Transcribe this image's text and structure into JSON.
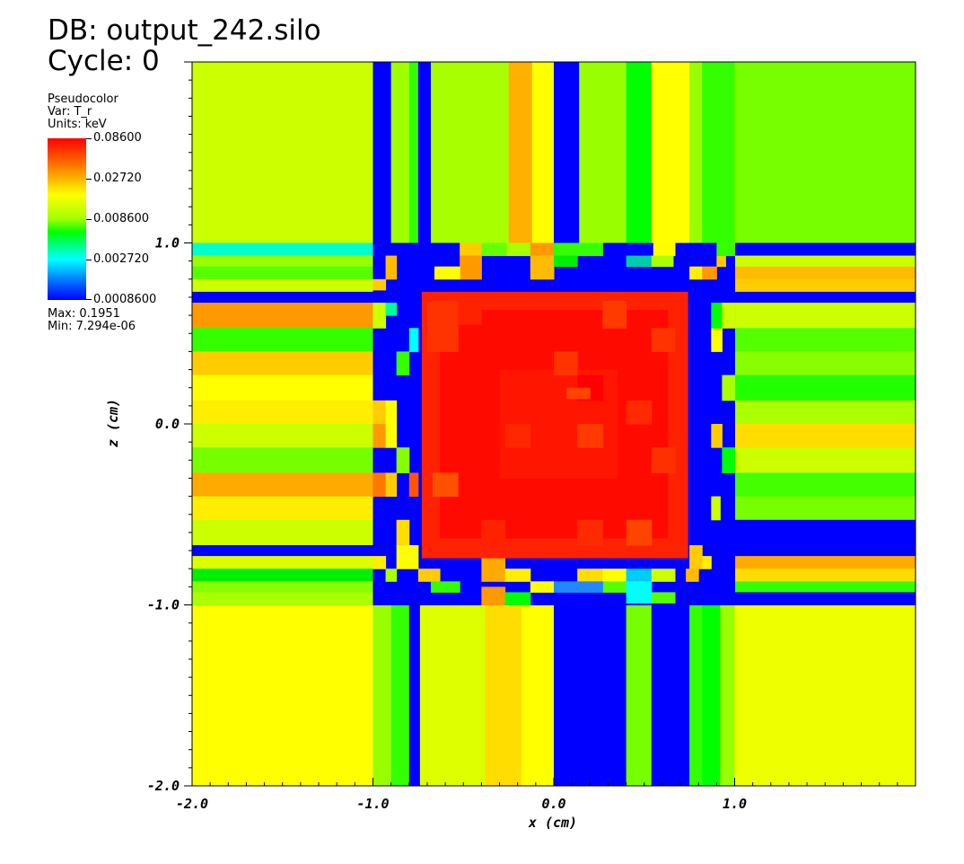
{
  "header": {
    "db_line": "DB: output_242.silo",
    "cycle_line": "Cycle: 0"
  },
  "legend": {
    "plot_type": "Pseudocolor",
    "var_line": "Var: T_r",
    "units_line": "Units: keV",
    "max_line": "Max:  0.1951",
    "min_line": "Min:  7.294e-06",
    "colorbar_labels": [
      "0.08600",
      "0.02720",
      "0.008600",
      "0.002720",
      "0.0008600"
    ]
  },
  "chart_data": {
    "type": "heatmap",
    "xlabel": "x (cm)",
    "ylabel": "z (cm)",
    "xlim": [
      -2.0,
      2.0
    ],
    "ylim": [
      -2.0,
      2.0
    ],
    "x_tick_labels": [
      "-2.0",
      "-1.0",
      "0.0",
      "1.0"
    ],
    "x_ticks": [
      -2.0,
      -1.0,
      0.0,
      1.0
    ],
    "y_tick_labels": [
      "-2.0",
      "-1.0",
      "0.0",
      "1.0"
    ],
    "y_ticks": [
      -2.0,
      -1.0,
      0.0,
      1.0
    ],
    "colormap": [
      "#0000ff",
      "#00ffff",
      "#00ff00",
      "#ffff00",
      "#ff0000"
    ],
    "cells": [
      {
        "x0": -2.0,
        "x1": -1.0,
        "y0": 1.0,
        "y1": 2.0,
        "color": "#ccff00"
      },
      {
        "x0": -1.0,
        "x1": -0.9,
        "y0": 1.0,
        "y1": 2.0,
        "color": "#0000ff"
      },
      {
        "x0": -0.9,
        "x1": -0.8,
        "y0": 1.0,
        "y1": 2.0,
        "color": "#a0ff00"
      },
      {
        "x0": -0.8,
        "x1": -0.75,
        "y0": 1.0,
        "y1": 2.0,
        "color": "#33ff00"
      },
      {
        "x0": -0.75,
        "x1": -0.68,
        "y0": 1.0,
        "y1": 2.0,
        "color": "#0000ff"
      },
      {
        "x0": -0.68,
        "x1": -0.25,
        "y0": 1.0,
        "y1": 2.0,
        "color": "#a8ff00"
      },
      {
        "x0": -0.25,
        "x1": -0.12,
        "y0": 1.0,
        "y1": 2.0,
        "color": "#ffb000"
      },
      {
        "x0": -0.12,
        "x1": 0.0,
        "y0": 1.0,
        "y1": 2.0,
        "color": "#ffff00"
      },
      {
        "x0": 0.0,
        "x1": 0.14,
        "y0": 1.0,
        "y1": 2.0,
        "color": "#0000ff"
      },
      {
        "x0": 0.14,
        "x1": 0.4,
        "y0": 1.0,
        "y1": 2.0,
        "color": "#99ff00"
      },
      {
        "x0": 0.4,
        "x1": 0.54,
        "y0": 1.0,
        "y1": 2.0,
        "color": "#00ff00"
      },
      {
        "x0": 0.54,
        "x1": 0.75,
        "y0": 1.0,
        "y1": 2.0,
        "color": "#ffff00"
      },
      {
        "x0": 0.75,
        "x1": 0.82,
        "y0": 1.0,
        "y1": 2.0,
        "color": "#99ff00"
      },
      {
        "x0": 0.82,
        "x1": 1.0,
        "y0": 1.0,
        "y1": 2.0,
        "color": "#33ff00"
      },
      {
        "x0": 1.0,
        "x1": 2.0,
        "y0": 1.0,
        "y1": 2.0,
        "color": "#77ff00"
      },
      {
        "x0": -2.0,
        "x1": -1.0,
        "y0": -2.0,
        "y1": -1.0,
        "color": "#ffff00"
      },
      {
        "x0": -1.0,
        "x1": -0.9,
        "y0": -2.0,
        "y1": -1.0,
        "color": "#99ff00"
      },
      {
        "x0": -0.9,
        "x1": -0.8,
        "y0": -2.0,
        "y1": -1.0,
        "color": "#33ff00"
      },
      {
        "x0": -0.8,
        "x1": -0.74,
        "y0": -2.0,
        "y1": -1.0,
        "color": "#0000ff"
      },
      {
        "x0": -0.74,
        "x1": -0.38,
        "y0": -2.0,
        "y1": -1.0,
        "color": "#ddff00"
      },
      {
        "x0": -0.38,
        "x1": -0.18,
        "y0": -2.0,
        "y1": -1.0,
        "color": "#ffdd00"
      },
      {
        "x0": -0.18,
        "x1": 0.0,
        "y0": -2.0,
        "y1": -1.0,
        "color": "#ffff00"
      },
      {
        "x0": 0.0,
        "x1": 0.4,
        "y0": -2.0,
        "y1": -1.0,
        "color": "#0000ff"
      },
      {
        "x0": 0.4,
        "x1": 0.54,
        "y0": -2.0,
        "y1": -1.0,
        "color": "#77ff00"
      },
      {
        "x0": 0.54,
        "x1": 0.75,
        "y0": -2.0,
        "y1": -1.0,
        "color": "#0000ff"
      },
      {
        "x0": 0.75,
        "x1": 0.82,
        "y0": -2.0,
        "y1": -1.0,
        "color": "#33ff00"
      },
      {
        "x0": 0.82,
        "x1": 0.92,
        "y0": -2.0,
        "y1": -1.0,
        "color": "#00ff00"
      },
      {
        "x0": 0.92,
        "x1": 1.0,
        "y0": -2.0,
        "y1": -1.0,
        "color": "#99ff00"
      },
      {
        "x0": 1.0,
        "x1": 2.0,
        "y0": -2.0,
        "y1": -1.0,
        "color": "#eeff00"
      },
      {
        "x0": -2.0,
        "x1": -1.0,
        "y0": 0.93,
        "y1": 1.0,
        "color": "#00ffcc"
      },
      {
        "x0": -2.0,
        "x1": -1.0,
        "y0": 0.87,
        "y1": 0.93,
        "color": "#99ff00"
      },
      {
        "x0": -2.0,
        "x1": -1.0,
        "y0": 0.8,
        "y1": 0.87,
        "color": "#55ff00"
      },
      {
        "x0": -2.0,
        "x1": -1.0,
        "y0": 0.73,
        "y1": 0.8,
        "color": "#ccff00"
      },
      {
        "x0": -2.0,
        "x1": -1.0,
        "y0": 0.67,
        "y1": 0.73,
        "color": "#0000ff"
      },
      {
        "x0": -2.0,
        "x1": -1.0,
        "y0": 0.53,
        "y1": 0.67,
        "color": "#ff9900"
      },
      {
        "x0": -2.0,
        "x1": -1.0,
        "y0": 0.4,
        "y1": 0.53,
        "color": "#33ff00"
      },
      {
        "x0": -2.0,
        "x1": -1.0,
        "y0": 0.27,
        "y1": 0.4,
        "color": "#ffcc00"
      },
      {
        "x0": -2.0,
        "x1": -1.0,
        "y0": 0.13,
        "y1": 0.27,
        "color": "#ffff00"
      },
      {
        "x0": -2.0,
        "x1": -1.0,
        "y0": 0.0,
        "y1": 0.13,
        "color": "#ffee00"
      },
      {
        "x0": -2.0,
        "x1": -1.0,
        "y0": -0.13,
        "y1": 0.0,
        "color": "#ccff00"
      },
      {
        "x0": -2.0,
        "x1": -1.0,
        "y0": -0.27,
        "y1": -0.13,
        "color": "#77ff00"
      },
      {
        "x0": -2.0,
        "x1": -1.0,
        "y0": -0.4,
        "y1": -0.27,
        "color": "#ffaa00"
      },
      {
        "x0": -2.0,
        "x1": -1.0,
        "y0": -0.53,
        "y1": -0.4,
        "color": "#ffee00"
      },
      {
        "x0": -2.0,
        "x1": -1.0,
        "y0": -0.67,
        "y1": -0.53,
        "color": "#ccff00"
      },
      {
        "x0": -2.0,
        "x1": -1.0,
        "y0": -0.73,
        "y1": -0.67,
        "color": "#0000ff"
      },
      {
        "x0": -2.0,
        "x1": -1.0,
        "y0": -0.8,
        "y1": -0.73,
        "color": "#ddff00"
      },
      {
        "x0": -2.0,
        "x1": -1.0,
        "y0": -0.87,
        "y1": -0.8,
        "color": "#00ee00"
      },
      {
        "x0": -2.0,
        "x1": -1.0,
        "y0": -0.93,
        "y1": -0.87,
        "color": "#88ff00"
      },
      {
        "x0": -2.0,
        "x1": -1.0,
        "y0": -1.0,
        "y1": -0.93,
        "color": "#aaff00"
      },
      {
        "x0": 1.0,
        "x1": 2.0,
        "y0": 0.93,
        "y1": 1.0,
        "color": "#0000ff"
      },
      {
        "x0": 1.0,
        "x1": 2.0,
        "y0": 0.87,
        "y1": 0.93,
        "color": "#ccff00"
      },
      {
        "x0": 1.0,
        "x1": 2.0,
        "y0": 0.8,
        "y1": 0.87,
        "color": "#ffbb00"
      },
      {
        "x0": 1.0,
        "x1": 2.0,
        "y0": 0.73,
        "y1": 0.8,
        "color": "#ffcc00"
      },
      {
        "x0": 1.0,
        "x1": 2.0,
        "y0": 0.67,
        "y1": 0.73,
        "color": "#0000ff"
      },
      {
        "x0": 1.0,
        "x1": 2.0,
        "y0": 0.53,
        "y1": 0.67,
        "color": "#ccff00"
      },
      {
        "x0": 1.0,
        "x1": 2.0,
        "y0": 0.4,
        "y1": 0.53,
        "color": "#55ff00"
      },
      {
        "x0": 1.0,
        "x1": 2.0,
        "y0": 0.27,
        "y1": 0.4,
        "color": "#88ff00"
      },
      {
        "x0": 1.0,
        "x1": 2.0,
        "y0": 0.13,
        "y1": 0.27,
        "color": "#22ff00"
      },
      {
        "x0": 1.0,
        "x1": 2.0,
        "y0": 0.0,
        "y1": 0.13,
        "color": "#aaff00"
      },
      {
        "x0": 1.0,
        "x1": 2.0,
        "y0": -0.13,
        "y1": 0.0,
        "color": "#ffdd00"
      },
      {
        "x0": 1.0,
        "x1": 2.0,
        "y0": -0.27,
        "y1": -0.13,
        "color": "#ccff00"
      },
      {
        "x0": 1.0,
        "x1": 2.0,
        "y0": -0.4,
        "y1": -0.27,
        "color": "#44ff00"
      },
      {
        "x0": 1.0,
        "x1": 2.0,
        "y0": -0.53,
        "y1": -0.4,
        "color": "#77ff00"
      },
      {
        "x0": 1.0,
        "x1": 2.0,
        "y0": -0.67,
        "y1": -0.53,
        "color": "#0000ff"
      },
      {
        "x0": 1.0,
        "x1": 2.0,
        "y0": -0.73,
        "y1": -0.67,
        "color": "#0000ff"
      },
      {
        "x0": 1.0,
        "x1": 2.0,
        "y0": -0.8,
        "y1": -0.73,
        "color": "#ffaa00"
      },
      {
        "x0": 1.0,
        "x1": 2.0,
        "y0": -0.87,
        "y1": -0.8,
        "color": "#ffdd00"
      },
      {
        "x0": 1.0,
        "x1": 2.0,
        "y0": -0.93,
        "y1": -0.87,
        "color": "#33ff00"
      },
      {
        "x0": 1.0,
        "x1": 2.0,
        "y0": -1.0,
        "y1": -0.93,
        "color": "#0000ff"
      },
      {
        "x0": -1.0,
        "x1": 1.0,
        "y0": -1.0,
        "y1": 1.0,
        "color": "#0000ff"
      },
      {
        "x0": -0.72,
        "x1": 0.75,
        "y0": 0.78,
        "y1": 1.0,
        "color": "#0000ff"
      },
      {
        "x0": -0.52,
        "x1": -0.4,
        "y0": 0.93,
        "y1": 1.0,
        "color": "#ffcc00"
      },
      {
        "x0": -0.4,
        "x1": -0.26,
        "y0": 0.93,
        "y1": 1.0,
        "color": "#66ff00"
      },
      {
        "x0": -0.26,
        "x1": -0.13,
        "y0": 0.93,
        "y1": 1.0,
        "color": "#aaff00"
      },
      {
        "x0": -0.13,
        "x1": 0.0,
        "y0": 0.93,
        "y1": 1.0,
        "color": "#ff9900"
      },
      {
        "x0": 0.0,
        "x1": 0.27,
        "y0": 0.93,
        "y1": 1.0,
        "color": "#33ff00"
      },
      {
        "x0": 0.55,
        "x1": 0.67,
        "y0": 0.93,
        "y1": 1.0,
        "color": "#ffff00"
      },
      {
        "x0": -0.52,
        "x1": -0.4,
        "y0": 0.8,
        "y1": 0.93,
        "color": "#ff9900"
      },
      {
        "x0": -0.66,
        "x1": -0.52,
        "y0": 0.8,
        "y1": 0.87,
        "color": "#ffff00"
      },
      {
        "x0": -0.13,
        "x1": 0.0,
        "y0": 0.8,
        "y1": 0.93,
        "color": "#ffbb00"
      },
      {
        "x0": 0.0,
        "x1": 0.13,
        "y0": 0.87,
        "y1": 0.93,
        "color": "#00ee00"
      },
      {
        "x0": 0.4,
        "x1": 0.54,
        "y0": 0.87,
        "y1": 0.93,
        "color": "#00ccaa"
      },
      {
        "x0": 0.54,
        "x1": 0.66,
        "y0": 0.87,
        "y1": 0.93,
        "color": "#aaff00"
      },
      {
        "x0": -0.93,
        "x1": -0.87,
        "y0": 0.8,
        "y1": 0.93,
        "color": "#ffbb00"
      },
      {
        "x0": -1.0,
        "x1": -0.93,
        "y0": 0.74,
        "y1": 0.8,
        "color": "#ffcc00"
      },
      {
        "x0": -1.0,
        "x1": -0.93,
        "y0": 0.53,
        "y1": 0.67,
        "color": "#ccff00"
      },
      {
        "x0": -0.93,
        "x1": -0.87,
        "y0": 0.6,
        "y1": 0.67,
        "color": "#00ff99"
      },
      {
        "x0": -0.8,
        "x1": -0.75,
        "y0": 0.4,
        "y1": 0.53,
        "color": "#00ffff"
      },
      {
        "x0": -0.87,
        "x1": -0.8,
        "y0": 0.27,
        "y1": 0.4,
        "color": "#33ff00"
      },
      {
        "x0": -1.0,
        "x1": -0.93,
        "y0": 0.0,
        "y1": 0.13,
        "color": "#ffcc00"
      },
      {
        "x0": -1.0,
        "x1": -0.93,
        "y0": -0.13,
        "y1": 0.0,
        "color": "#ff9900"
      },
      {
        "x0": -0.93,
        "x1": -0.87,
        "y0": -0.13,
        "y1": 0.13,
        "color": "#ffff00"
      },
      {
        "x0": -0.87,
        "x1": -0.8,
        "y0": -0.27,
        "y1": -0.13,
        "color": "#88ff00"
      },
      {
        "x0": -1.0,
        "x1": -0.93,
        "y0": -0.4,
        "y1": -0.27,
        "color": "#ff7700"
      },
      {
        "x0": -0.93,
        "x1": -0.87,
        "y0": -0.4,
        "y1": -0.27,
        "color": "#ffcc00"
      },
      {
        "x0": -0.8,
        "x1": -0.75,
        "y0": -0.4,
        "y1": -0.27,
        "color": "#ff5500"
      },
      {
        "x0": -0.87,
        "x1": -0.8,
        "y0": -0.67,
        "y1": -0.53,
        "color": "#ffdd00"
      },
      {
        "x0": -0.87,
        "x1": -0.75,
        "y0": -0.8,
        "y1": -0.67,
        "color": "#ffff00"
      },
      {
        "x0": -1.0,
        "x1": -0.93,
        "y0": -0.8,
        "y1": -0.73,
        "color": "#ffee00"
      },
      {
        "x0": -0.93,
        "x1": -0.87,
        "y0": -0.87,
        "y1": -0.8,
        "color": "#aaff00"
      },
      {
        "x0": -0.75,
        "x1": -0.63,
        "y0": -0.87,
        "y1": -0.8,
        "color": "#ffcc00"
      },
      {
        "x0": -0.68,
        "x1": -0.52,
        "y0": -0.93,
        "y1": -0.87,
        "color": "#33ff00"
      },
      {
        "x0": -0.4,
        "x1": -0.27,
        "y0": -0.87,
        "y1": -0.73,
        "color": "#ffaa00"
      },
      {
        "x0": -0.27,
        "x1": -0.13,
        "y0": -0.87,
        "y1": -0.8,
        "color": "#ffee00"
      },
      {
        "x0": -0.4,
        "x1": -0.27,
        "y0": -1.0,
        "y1": -0.9,
        "color": "#ff9900"
      },
      {
        "x0": -0.27,
        "x1": -0.13,
        "y0": -1.0,
        "y1": -0.93,
        "color": "#00ff00"
      },
      {
        "x0": -0.13,
        "x1": 0.0,
        "y0": -0.93,
        "y1": -0.87,
        "color": "#ffff00"
      },
      {
        "x0": 0.13,
        "x1": 0.27,
        "y0": -0.87,
        "y1": -0.8,
        "color": "#ffdd00"
      },
      {
        "x0": 0.27,
        "x1": 0.4,
        "y0": -0.87,
        "y1": -0.8,
        "color": "#ffff00"
      },
      {
        "x0": 0.27,
        "x1": 0.4,
        "y0": -0.93,
        "y1": -0.87,
        "color": "#55ff00"
      },
      {
        "x0": 0.4,
        "x1": 0.54,
        "y0": -0.87,
        "y1": -0.8,
        "color": "#00ccff"
      },
      {
        "x0": 0.4,
        "x1": 0.54,
        "y0": -0.99,
        "y1": -0.87,
        "color": "#00ffff"
      },
      {
        "x0": 0.54,
        "x1": 0.67,
        "y0": -0.87,
        "y1": -0.8,
        "color": "#ccff00"
      },
      {
        "x0": 0.54,
        "x1": 0.67,
        "y0": -0.99,
        "y1": -0.93,
        "color": "#55ff00"
      },
      {
        "x0": 0.0,
        "x1": 0.27,
        "y0": -0.93,
        "y1": -0.87,
        "color": "#2288ff"
      },
      {
        "x0": 0.75,
        "x1": 0.82,
        "y0": -0.8,
        "y1": -0.67,
        "color": "#ffcc00"
      },
      {
        "x0": 0.82,
        "x1": 0.87,
        "y0": -0.8,
        "y1": -0.73,
        "color": "#ffee00"
      },
      {
        "x0": 0.73,
        "x1": 0.8,
        "y0": -0.87,
        "y1": -0.8,
        "color": "#ffbb00"
      },
      {
        "x0": 0.87,
        "x1": 0.92,
        "y0": -0.53,
        "y1": -0.4,
        "color": "#ccff00"
      },
      {
        "x0": 0.87,
        "x1": 0.93,
        "y0": -0.13,
        "y1": 0.0,
        "color": "#ffcc00"
      },
      {
        "x0": 0.93,
        "x1": 1.0,
        "y0": -0.27,
        "y1": -0.13,
        "color": "#00ff00"
      },
      {
        "x0": 0.93,
        "x1": 1.0,
        "y0": 0.13,
        "y1": 0.27,
        "color": "#aaff00"
      },
      {
        "x0": 0.87,
        "x1": 0.93,
        "y0": 0.4,
        "y1": 0.53,
        "color": "#ffff00"
      },
      {
        "x0": 0.87,
        "x1": 0.93,
        "y0": 0.53,
        "y1": 0.67,
        "color": "#00ff00"
      },
      {
        "x0": 0.93,
        "x1": 1.0,
        "y0": 0.53,
        "y1": 0.67,
        "color": "#ccff00"
      },
      {
        "x0": 0.75,
        "x1": 0.82,
        "y0": 0.8,
        "y1": 0.87,
        "color": "#ffee00"
      },
      {
        "x0": 0.82,
        "x1": 0.9,
        "y0": 0.8,
        "y1": 0.87,
        "color": "#ff9900"
      },
      {
        "x0": 0.9,
        "x1": 0.95,
        "y0": 0.87,
        "y1": 0.93,
        "color": "#ffcc00"
      },
      {
        "x0": 0.9,
        "x1": 1.0,
        "y0": 0.93,
        "y1": 1.0,
        "color": "#33ff00"
      },
      {
        "x0": -0.73,
        "x1": 0.74,
        "y0": -0.74,
        "y1": 0.73,
        "color": "#ff2200"
      },
      {
        "x0": -0.63,
        "x1": 0.63,
        "y0": -0.63,
        "y1": 0.63,
        "color": "#ff0a00"
      },
      {
        "x0": -0.3,
        "x1": 0.35,
        "y0": -0.3,
        "y1": 0.3,
        "color": "#ff1500"
      },
      {
        "x0": -0.7,
        "x1": -0.53,
        "y0": 0.4,
        "y1": 0.68,
        "color": "#ff3300"
      },
      {
        "x0": -0.53,
        "x1": -0.4,
        "y0": 0.55,
        "y1": 0.68,
        "color": "#ff2200"
      },
      {
        "x0": 0.27,
        "x1": 0.4,
        "y0": 0.53,
        "y1": 0.68,
        "color": "#ff3a00"
      },
      {
        "x0": 0.54,
        "x1": 0.67,
        "y0": 0.4,
        "y1": 0.53,
        "color": "#ff3300"
      },
      {
        "x0": 0.0,
        "x1": 0.13,
        "y0": 0.27,
        "y1": 0.4,
        "color": "#ff3300"
      },
      {
        "x0": 0.13,
        "x1": 0.27,
        "y0": 0.13,
        "y1": 0.27,
        "color": "#ff0000"
      },
      {
        "x0": 0.07,
        "x1": 0.2,
        "y0": 0.14,
        "y1": 0.2,
        "color": "#ff4400"
      },
      {
        "x0": -0.67,
        "x1": -0.53,
        "y0": -0.4,
        "y1": -0.27,
        "color": "#ff5000"
      },
      {
        "x0": -0.27,
        "x1": -0.13,
        "y0": -0.13,
        "y1": 0.0,
        "color": "#ff2600"
      },
      {
        "x0": 0.13,
        "x1": 0.27,
        "y0": -0.13,
        "y1": 0.0,
        "color": "#ff3a00"
      },
      {
        "x0": 0.4,
        "x1": 0.54,
        "y0": 0.0,
        "y1": 0.13,
        "color": "#ff2a00"
      },
      {
        "x0": 0.54,
        "x1": 0.67,
        "y0": -0.27,
        "y1": -0.13,
        "color": "#ff3000"
      },
      {
        "x0": -0.4,
        "x1": -0.27,
        "y0": -0.67,
        "y1": -0.53,
        "color": "#ff2200"
      },
      {
        "x0": 0.4,
        "x1": 0.54,
        "y0": -0.67,
        "y1": -0.53,
        "color": "#ff4400"
      },
      {
        "x0": 0.13,
        "x1": 0.27,
        "y0": -0.67,
        "y1": -0.53,
        "color": "#ff2a00"
      }
    ]
  }
}
